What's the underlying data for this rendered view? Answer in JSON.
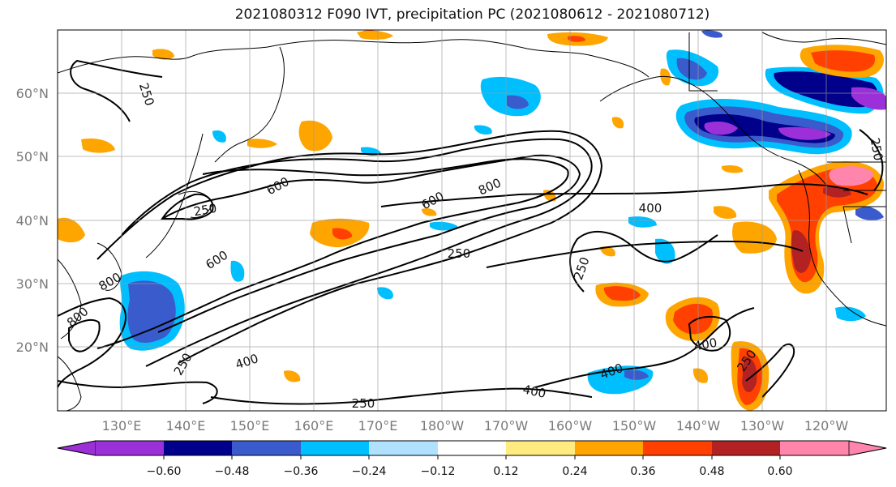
{
  "title": "2021080312 F090 IVT, precipitation PC (2021080612 - 2021080712)",
  "latitude_labels": [
    "60°N",
    "50°N",
    "40°N",
    "30°N",
    "20°N"
  ],
  "longitude_labels": [
    "130°E",
    "140°E",
    "150°E",
    "160°E",
    "170°E",
    "180°W",
    "170°W",
    "160°W",
    "150°W",
    "140°W",
    "130°W",
    "120°W"
  ],
  "colorbar": {
    "tick_labels": [
      "−0.60",
      "−0.48",
      "−0.36",
      "−0.24",
      "−0.12",
      "0.12",
      "0.24",
      "0.36",
      "0.48",
      "0.60"
    ],
    "colors": [
      "#9b30d9",
      "#00008b",
      "#3a5bcc",
      "#00bfff",
      "#b0e2ff",
      "#ffffff",
      "#ffeb80",
      "#ffa500",
      "#ff4000",
      "#b22222",
      "#ff85ad"
    ]
  },
  "ivt_contour_labels": [
    "250",
    "600",
    "250",
    "600",
    "800",
    "600",
    "800",
    "400",
    "250",
    "800",
    "250",
    "400",
    "250",
    "400",
    "250",
    "400",
    "400",
    "250",
    "250"
  ]
}
